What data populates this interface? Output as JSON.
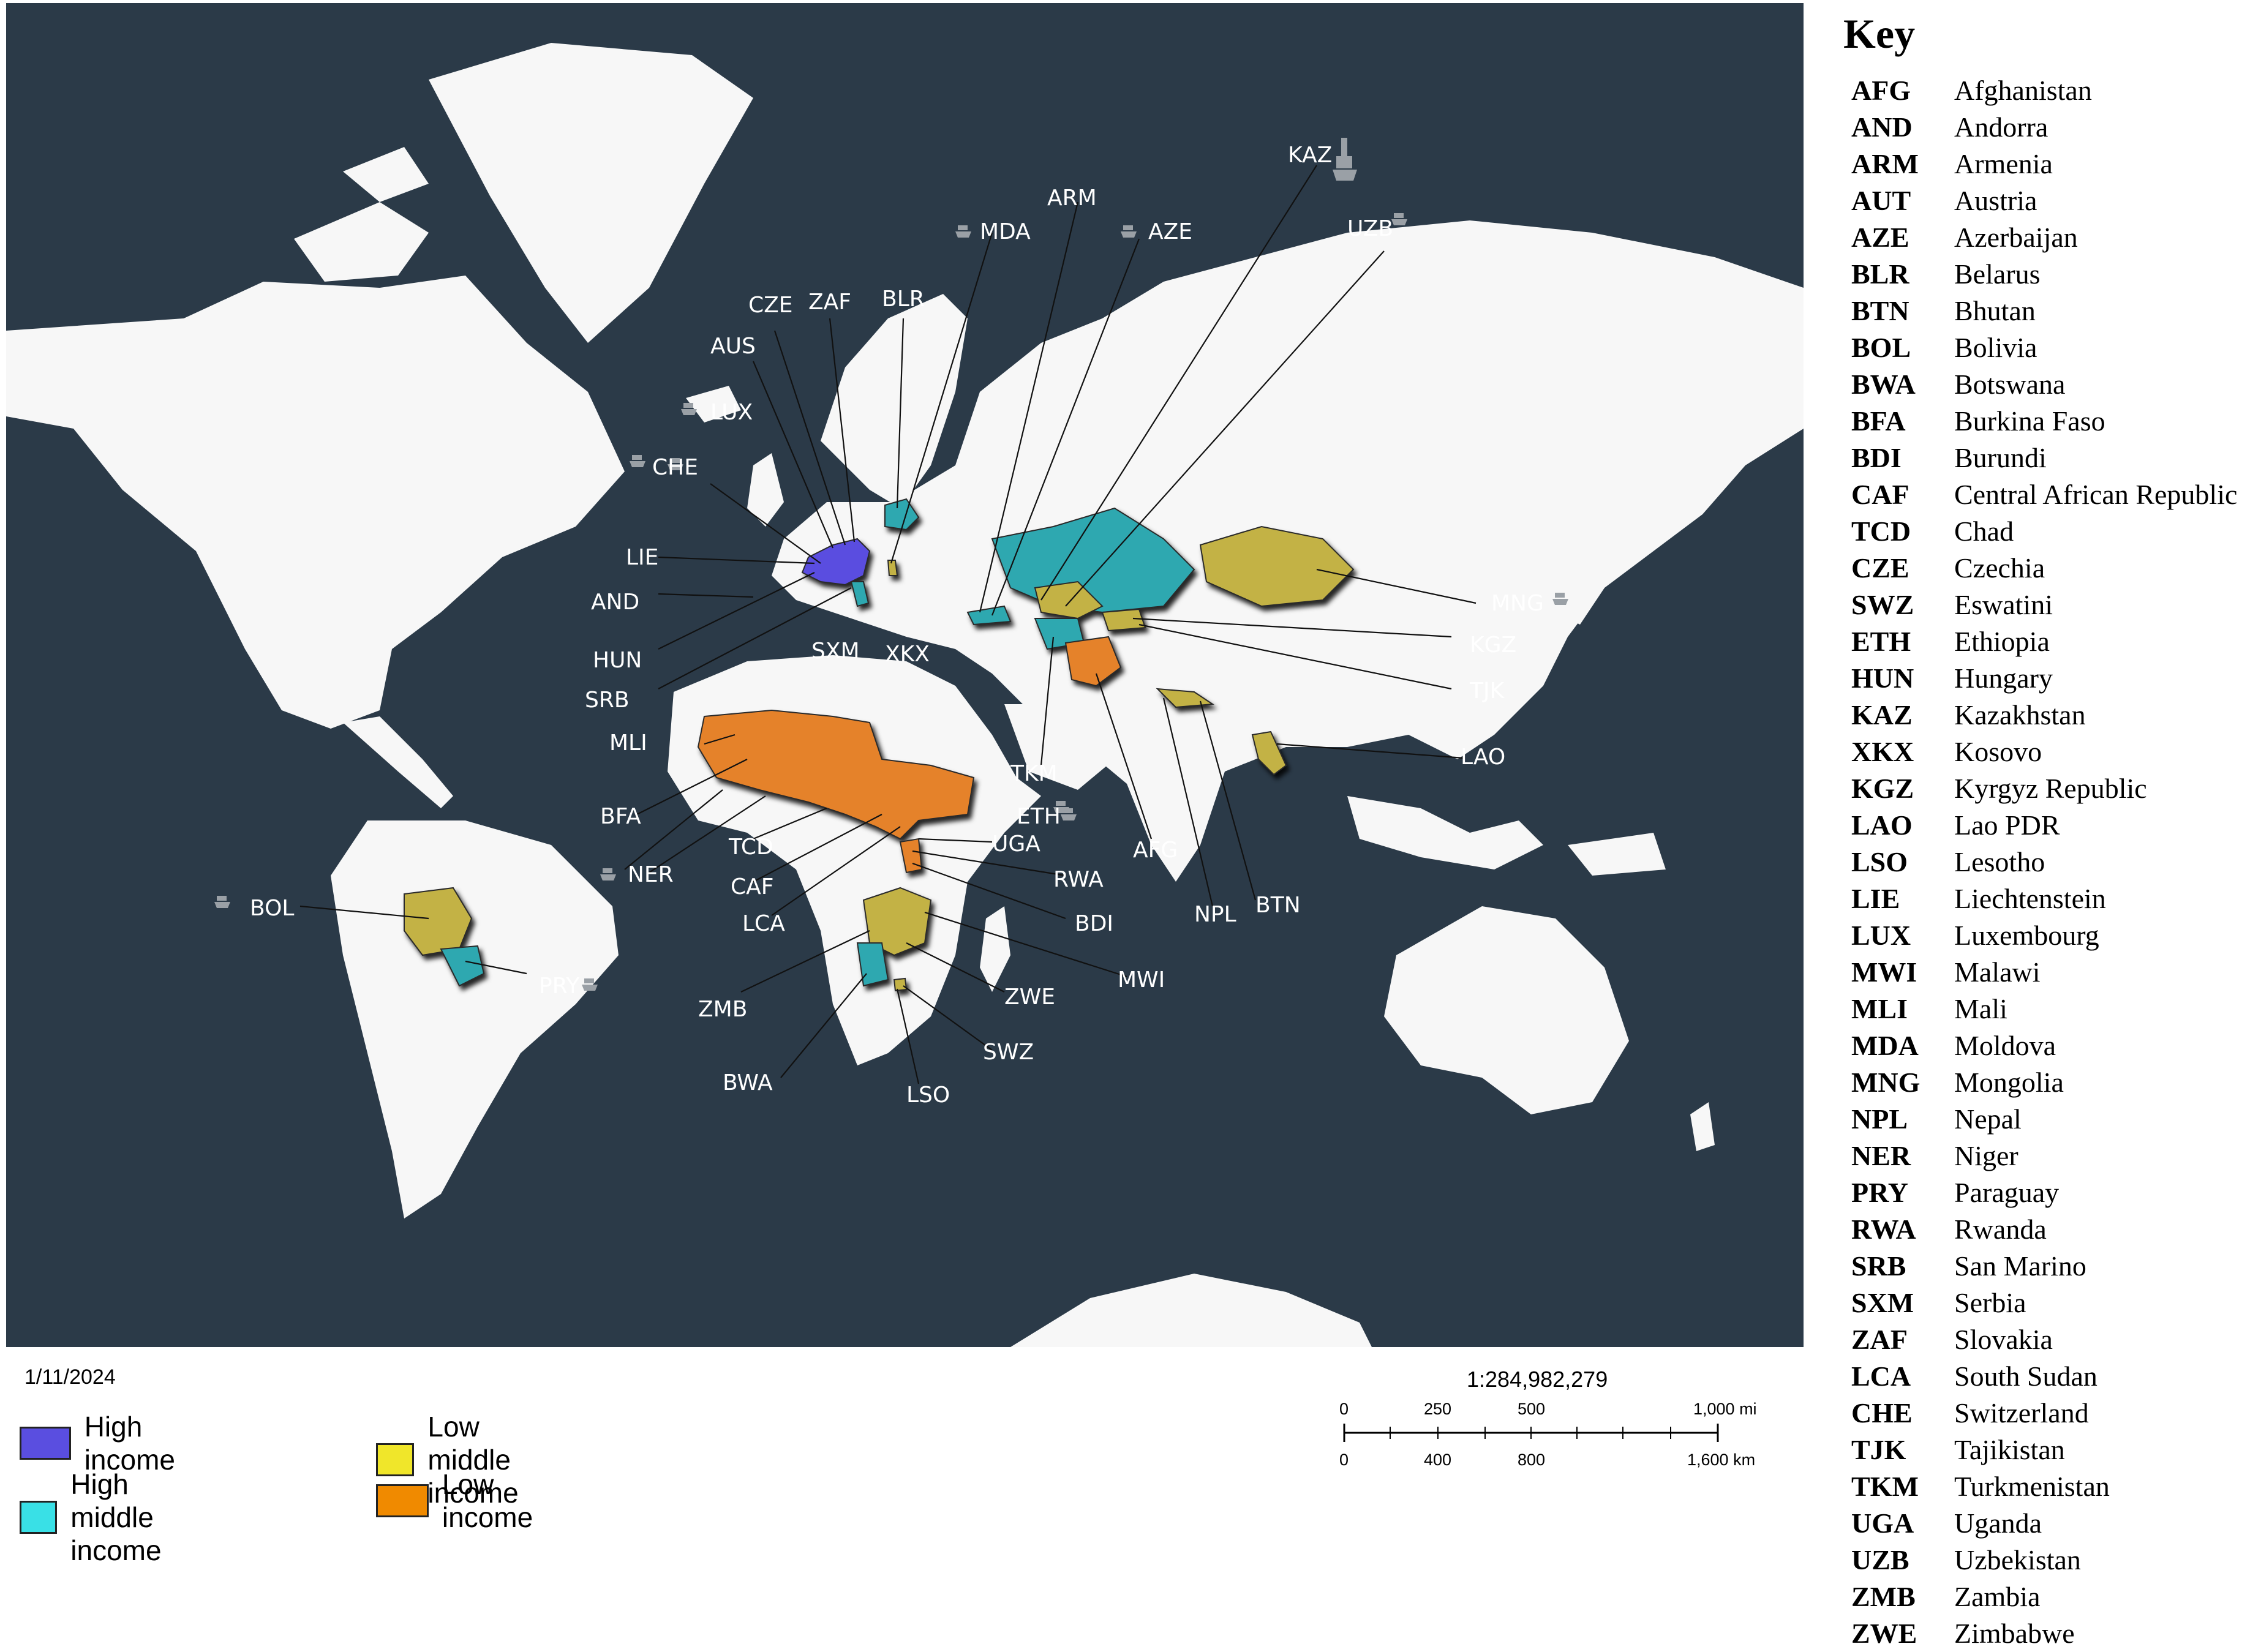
{
  "colors": {
    "ocean": "#2b3a48",
    "land": "#f7f7f7",
    "high_income": "#5a4ee0",
    "high_middle_income": "#2ea8b0",
    "low_middle_income": "#c3b244",
    "low_income": "#e5822c"
  },
  "map": {
    "date": "1/11/2024",
    "scale_ratio": "1:284,982,279",
    "scale_miles": [
      "0",
      "250",
      "500",
      "1,000 mi"
    ],
    "scale_km": [
      "0",
      "400",
      "800",
      "1,600 km"
    ],
    "icon": "ship-icon"
  },
  "legend": [
    {
      "label": "High income",
      "color": "#5a4ee0"
    },
    {
      "label": "High middle income",
      "color": "#39e0e6"
    },
    {
      "label": "Low middle income",
      "color": "#f0e62a"
    },
    {
      "label": "Low income",
      "color": "#f08a00"
    }
  ],
  "callouts": [
    "AFG",
    "AND",
    "ARM",
    "AUS",
    "AZE",
    "BDI",
    "BFA",
    "BLR",
    "BOL",
    "BTN",
    "BWA",
    "CAF",
    "CHE",
    "CZE",
    "ETH",
    "HUN",
    "KAZ",
    "KGZ",
    "LAO",
    "LCA",
    "LIE",
    "LSO",
    "LUX",
    "MDA",
    "MLI",
    "MNG",
    "MWI",
    "NER",
    "NPL",
    "PRY",
    "RWA",
    "SRB",
    "SWZ",
    "SXM",
    "TCD",
    "TJK",
    "TKM",
    "UGA",
    "UZB",
    "XKX",
    "ZAF",
    "ZMB",
    "ZWE"
  ],
  "key": {
    "title": "Key",
    "entries": [
      {
        "code": "AFG",
        "name": "Afghanistan"
      },
      {
        "code": "AND",
        "name": "Andorra"
      },
      {
        "code": "ARM",
        "name": "Armenia"
      },
      {
        "code": "AUT",
        "name": "Austria"
      },
      {
        "code": "AZE",
        "name": "Azerbaijan"
      },
      {
        "code": "BLR",
        "name": "Belarus"
      },
      {
        "code": "BTN",
        "name": "Bhutan"
      },
      {
        "code": "BOL",
        "name": "Bolivia"
      },
      {
        "code": "BWA",
        "name": "Botswana"
      },
      {
        "code": "BFA",
        "name": "Burkina Faso"
      },
      {
        "code": "BDI",
        "name": "Burundi"
      },
      {
        "code": "CAF",
        "name": "Central African Republic"
      },
      {
        "code": "TCD",
        "name": "Chad"
      },
      {
        "code": "CZE",
        "name": "Czechia"
      },
      {
        "code": "SWZ",
        "name": "Eswatini"
      },
      {
        "code": "ETH",
        "name": "Ethiopia"
      },
      {
        "code": "HUN",
        "name": "Hungary"
      },
      {
        "code": "KAZ",
        "name": "Kazakhstan"
      },
      {
        "code": "XKX",
        "name": "Kosovo"
      },
      {
        "code": "KGZ",
        "name": "Kyrgyz Republic"
      },
      {
        "code": "LAO",
        "name": "Lao PDR"
      },
      {
        "code": "LSO",
        "name": "Lesotho"
      },
      {
        "code": "LIE",
        "name": "Liechtenstein"
      },
      {
        "code": "LUX",
        "name": "Luxembourg"
      },
      {
        "code": "MWI",
        "name": "Malawi"
      },
      {
        "code": "MLI",
        "name": "Mali"
      },
      {
        "code": "MDA",
        "name": "Moldova"
      },
      {
        "code": "MNG",
        "name": "Mongolia"
      },
      {
        "code": "NPL",
        "name": "Nepal"
      },
      {
        "code": "NER",
        "name": "Niger"
      },
      {
        "code": "PRY",
        "name": "Paraguay"
      },
      {
        "code": "RWA",
        "name": "Rwanda"
      },
      {
        "code": "SRB",
        "name": "San Marino"
      },
      {
        "code": "SXM",
        "name": "Serbia"
      },
      {
        "code": "ZAF",
        "name": "Slovakia"
      },
      {
        "code": "LCA",
        "name": "South Sudan"
      },
      {
        "code": "CHE",
        "name": "Switzerland"
      },
      {
        "code": "TJK",
        "name": "Tajikistan"
      },
      {
        "code": "TKM",
        "name": "Turkmenistan"
      },
      {
        "code": "UGA",
        "name": "Uganda"
      },
      {
        "code": "UZB",
        "name": "Uzbekistan"
      },
      {
        "code": "ZMB",
        "name": "Zambia"
      },
      {
        "code": "ZWE",
        "name": "Zimbabwe"
      }
    ]
  }
}
